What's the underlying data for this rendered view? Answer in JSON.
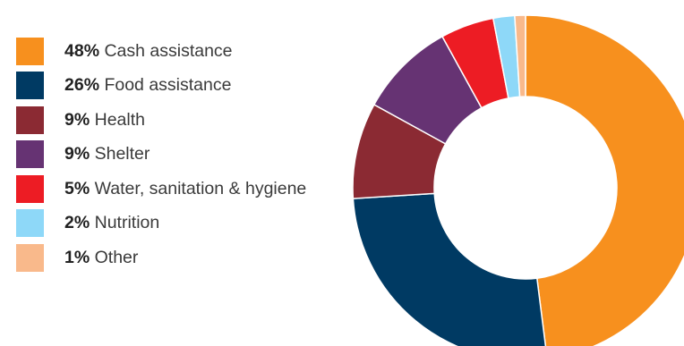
{
  "chart_data": {
    "type": "pie",
    "donut": true,
    "title": "",
    "legend_position": "left",
    "slices": [
      {
        "label": "Cash assistance",
        "value": 48,
        "pct_text": "48%",
        "color": "#F7901E"
      },
      {
        "label": "Food assistance",
        "value": 26,
        "pct_text": "26%",
        "color": "#003A63"
      },
      {
        "label": "Health",
        "value": 9,
        "pct_text": "9%",
        "color": "#8B2A33"
      },
      {
        "label": "Shelter",
        "value": 9,
        "pct_text": "9%",
        "color": "#663373"
      },
      {
        "label": "Water, sanitation & hygiene",
        "value": 5,
        "pct_text": "5%",
        "color": "#ED1C24"
      },
      {
        "label": "Nutrition",
        "value": 2,
        "pct_text": "2%",
        "color": "#8ED8F8"
      },
      {
        "label": "Other",
        "value": 1,
        "pct_text": "1%",
        "color": "#F9B98B"
      }
    ]
  }
}
